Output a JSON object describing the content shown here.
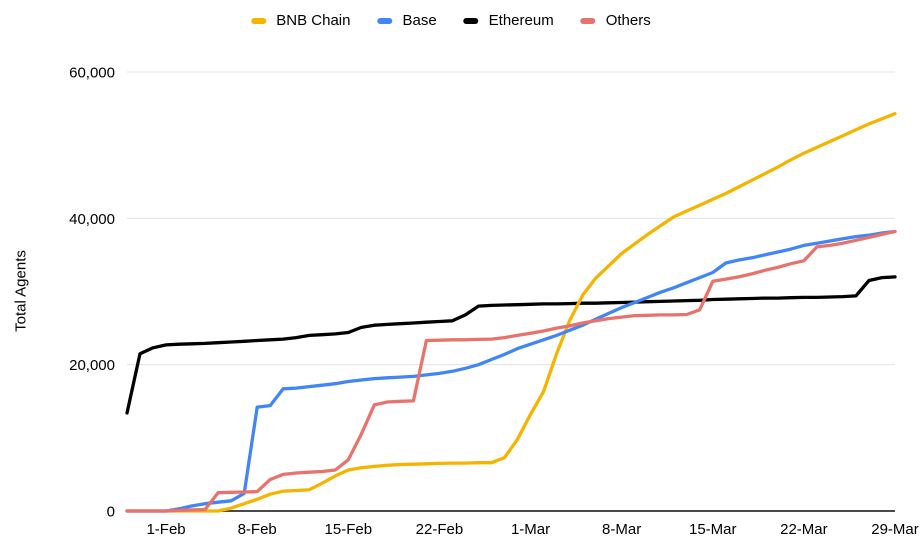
{
  "chart_data": {
    "type": "line",
    "title": "",
    "ylabel": "Total Agents",
    "ylim": [
      0,
      60000
    ],
    "grid": "horizontal",
    "legend_position": "top",
    "yticks": [
      {
        "value": 0,
        "label": "0"
      },
      {
        "value": 20000,
        "label": "20,000"
      },
      {
        "value": 40000,
        "label": "40,000"
      },
      {
        "value": 60000,
        "label": "60,000"
      }
    ],
    "x_point_count": 60,
    "x_ticks": [
      {
        "index": 3,
        "label": "1-Feb"
      },
      {
        "index": 10,
        "label": "8-Feb"
      },
      {
        "index": 17,
        "label": "15-Feb"
      },
      {
        "index": 24,
        "label": "22-Feb"
      },
      {
        "index": 31,
        "label": "1-Mar"
      },
      {
        "index": 38,
        "label": "8-Mar"
      },
      {
        "index": 45,
        "label": "15-Mar"
      },
      {
        "index": 52,
        "label": "22-Mar"
      },
      {
        "index": 59,
        "label": "29-Mar"
      }
    ],
    "series": [
      {
        "name": "BNB Chain",
        "color": "#F4B400",
        "values": [
          0,
          0,
          0,
          0,
          0,
          0,
          0,
          0,
          400,
          1000,
          1600,
          2300,
          2700,
          2800,
          2900,
          3800,
          4800,
          5600,
          5900,
          6100,
          6250,
          6350,
          6400,
          6450,
          6500,
          6550,
          6550,
          6600,
          6600,
          7300,
          9800,
          13200,
          16300,
          21500,
          26000,
          29500,
          31800,
          33500,
          35200,
          36500,
          37800,
          39000,
          40200,
          41000,
          41800,
          42600,
          43400,
          44300,
          45200,
          46100,
          47000,
          48000,
          48900,
          49700,
          50500,
          51300,
          52100,
          52900,
          53600,
          54300
        ]
      },
      {
        "name": "Base",
        "color": "#4285F4",
        "values": [
          0,
          0,
          0,
          0,
          300,
          700,
          1000,
          1200,
          1400,
          2400,
          14200,
          14400,
          16700,
          16800,
          17000,
          17200,
          17400,
          17700,
          17900,
          18100,
          18200,
          18300,
          18400,
          18600,
          18800,
          19100,
          19500,
          20000,
          20700,
          21400,
          22200,
          22800,
          23400,
          24000,
          24700,
          25400,
          26200,
          27000,
          27800,
          28500,
          29200,
          29900,
          30500,
          31200,
          31900,
          32600,
          33900,
          34300,
          34600,
          35000,
          35400,
          35800,
          36300,
          36600,
          36900,
          37200,
          37500,
          37700,
          38000,
          38200
        ]
      },
      {
        "name": "Ethereum",
        "color": "#000000",
        "values": [
          13400,
          21500,
          22300,
          22700,
          22800,
          22850,
          22900,
          23000,
          23100,
          23200,
          23300,
          23400,
          23500,
          23700,
          24000,
          24100,
          24200,
          24400,
          25100,
          25400,
          25500,
          25600,
          25700,
          25800,
          25900,
          26000,
          26800,
          28000,
          28100,
          28150,
          28200,
          28250,
          28300,
          28300,
          28350,
          28400,
          28400,
          28450,
          28500,
          28550,
          28600,
          28650,
          28700,
          28750,
          28800,
          28900,
          28950,
          29000,
          29050,
          29100,
          29100,
          29150,
          29200,
          29200,
          29250,
          29300,
          29400,
          31500,
          31900,
          32000
        ]
      },
      {
        "name": "Others",
        "color": "#E8736C",
        "values": [
          0,
          0,
          0,
          0,
          100,
          150,
          200,
          2500,
          2550,
          2600,
          2650,
          4300,
          5000,
          5200,
          5300,
          5400,
          5600,
          7000,
          10500,
          14500,
          14900,
          15000,
          15050,
          23300,
          23350,
          23400,
          23400,
          23450,
          23500,
          23700,
          24000,
          24300,
          24600,
          25000,
          25300,
          25700,
          26000,
          26300,
          26500,
          26700,
          26750,
          26800,
          26800,
          26850,
          27500,
          31400,
          31700,
          32000,
          32400,
          32900,
          33300,
          33800,
          34200,
          36100,
          36300,
          36600,
          37000,
          37400,
          37800,
          38200
        ]
      }
    ],
    "draw_order": [
      "Ethereum",
      "BNB Chain",
      "Base",
      "Others"
    ]
  },
  "style": {
    "grid_color": "#E3E3E3",
    "axis_line_color": "#4A4A4A",
    "tick_label_color": "#000000",
    "line_width": 3.3
  }
}
